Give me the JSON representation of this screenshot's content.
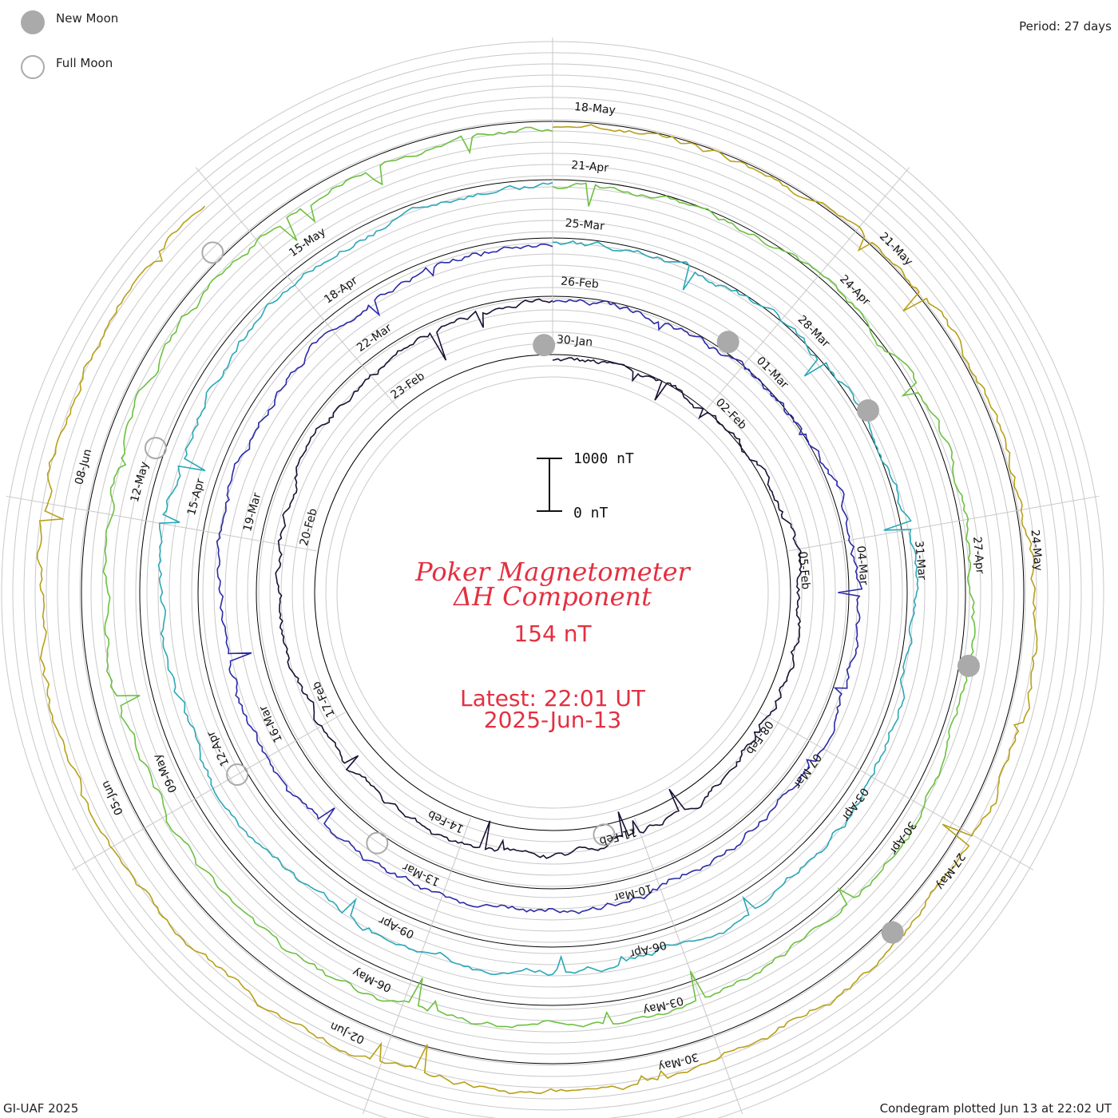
{
  "legend": {
    "new_moon": "New Moon",
    "full_moon": "Full Moon",
    "new_moon_color": "#aaaaaa",
    "full_moon_color": "#aaaaaa"
  },
  "header": {
    "period": "Period: 27 days"
  },
  "footer": {
    "credit": "GI-UAF 2025",
    "plotted": "Condegram plotted Jun 13 at 22:02 UT"
  },
  "center": {
    "title_line1": "Poker Magnetometer",
    "title_line2": "ΔH Component",
    "current_value": "154 nT",
    "latest_line1": "Latest: 22:01 UT",
    "latest_line2": "2025-Jun-13",
    "scale_top": "1000 nT",
    "scale_bottom": "0 nT",
    "text_color": "#e33040"
  },
  "chart_data": {
    "type": "line",
    "period_days": 27,
    "rings": [
      {
        "name": "",
        "color": "#1a1033",
        "dates": [
          "30-Jan",
          "02-Feb",
          "05-Feb",
          "08-Feb",
          "11-Feb",
          "14-Feb",
          "17-Feb",
          "20-Feb",
          "23-Feb"
        ]
      },
      {
        "name": "",
        "color": "#2a2aa8",
        "dates": [
          "26-Feb",
          "01-Mar",
          "04-Mar",
          "07-Mar",
          "10-Mar",
          "13-Mar",
          "16-Mar",
          "19-Mar",
          "22-Mar"
        ]
      },
      {
        "name": "",
        "color": "#2aa8b8",
        "dates": [
          "25-Mar",
          "28-Mar",
          "31-Mar",
          "03-Apr",
          "06-Apr",
          "09-Apr",
          "12-Apr",
          "15-Apr",
          "18-Apr"
        ]
      },
      {
        "name": "",
        "color": "#6cc040",
        "dates": [
          "21-Apr",
          "24-Apr",
          "27-Apr",
          "30-Apr",
          "03-May",
          "06-May",
          "09-May",
          "12-May",
          "15-May"
        ]
      },
      {
        "name": "",
        "color": "#b8a018",
        "dates": [
          "18-May",
          "21-May",
          "24-May",
          "27-May",
          "30-May",
          "02-Jun",
          "05-Jun",
          "08-Jun"
        ]
      }
    ],
    "new_moons": [
      "29-Jan",
      "28-Feb",
      "29-Mar",
      "27-Apr",
      "27-May"
    ],
    "full_moons": [
      "12-Feb",
      "14-Mar",
      "13-Apr",
      "12-May",
      "11-Jun"
    ],
    "ylim": [
      0,
      1000
    ],
    "units": "nT",
    "latest_value": 154
  }
}
